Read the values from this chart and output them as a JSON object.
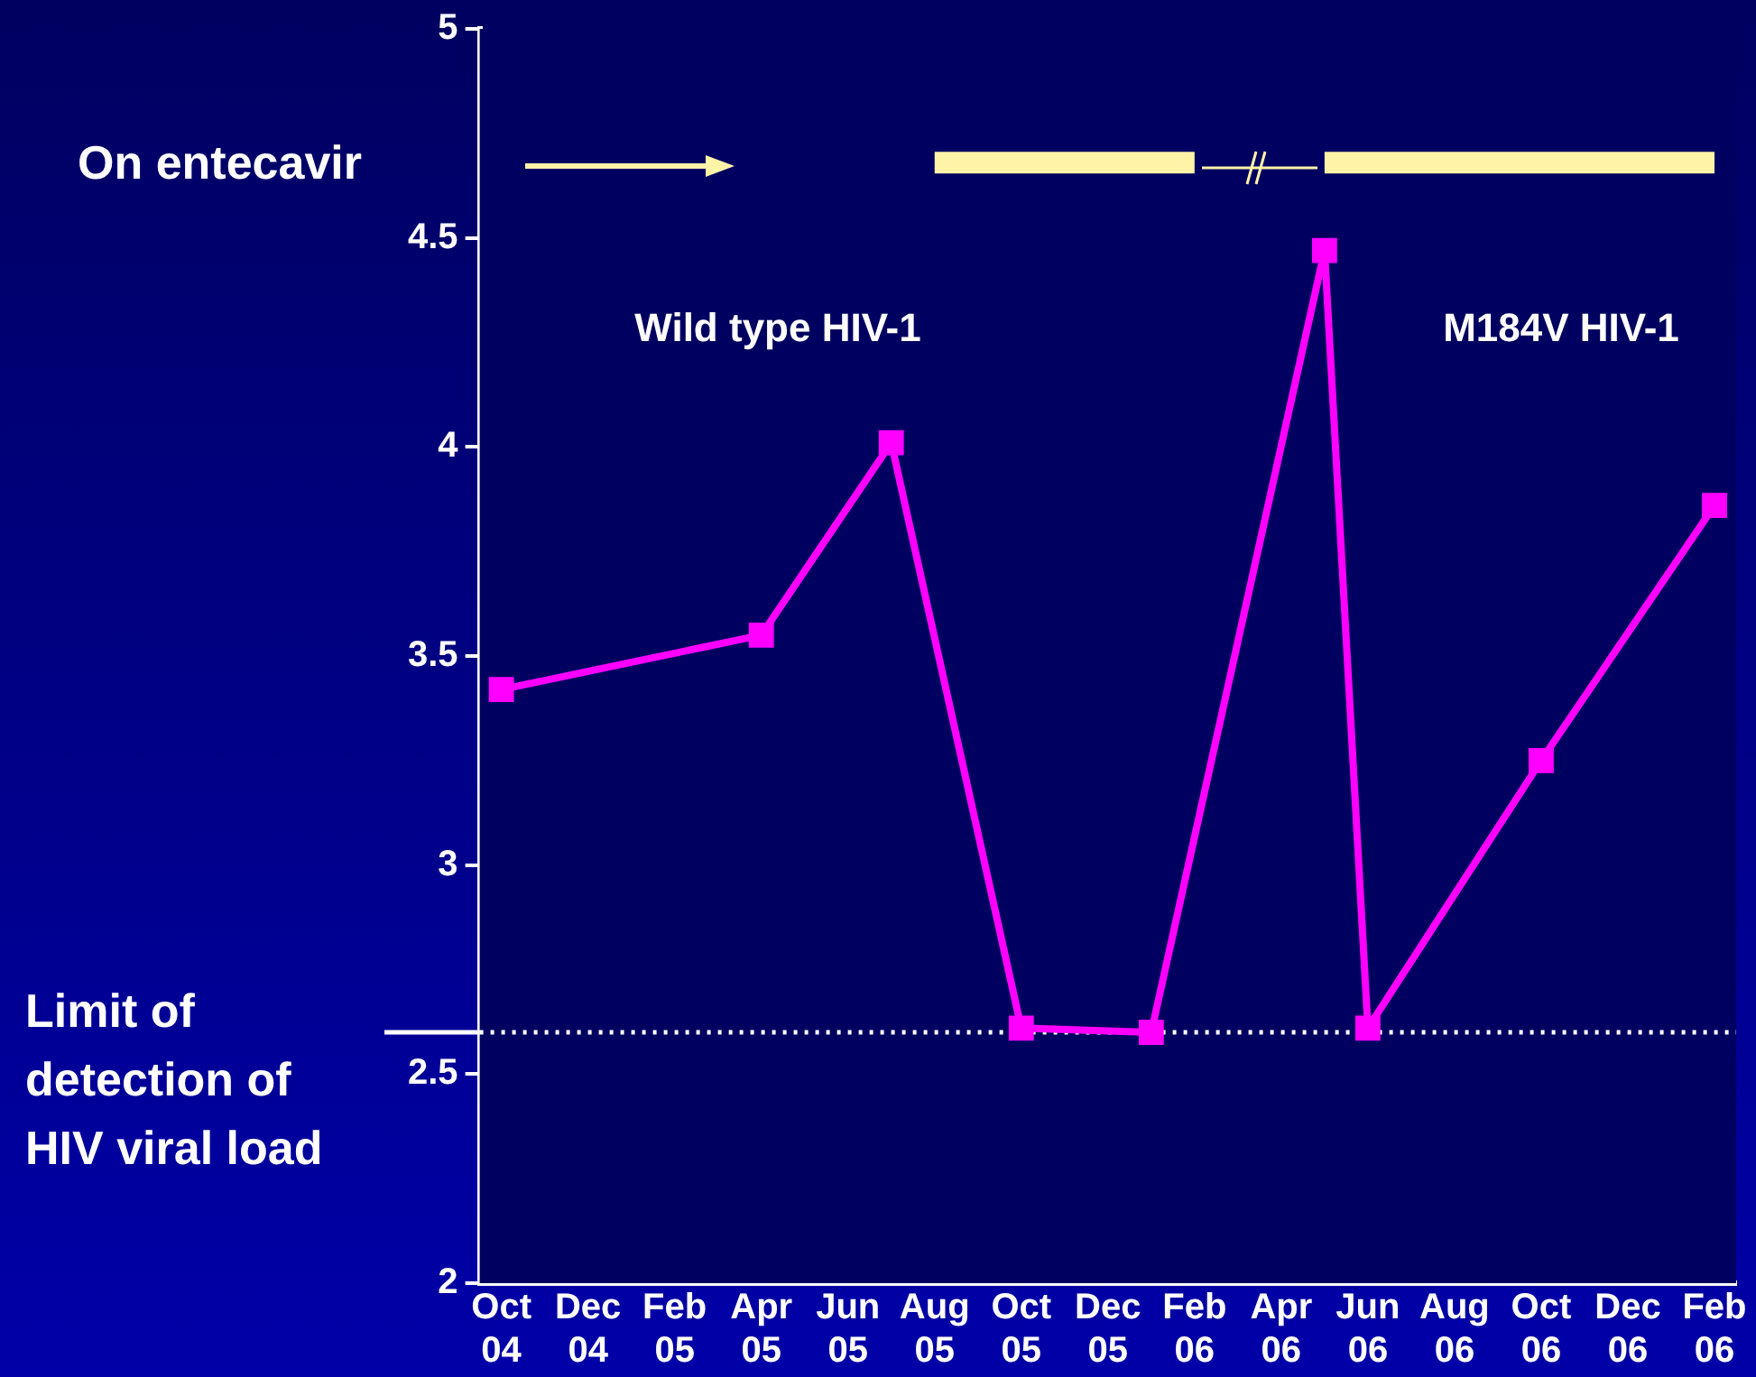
{
  "chart_data": {
    "type": "line",
    "categories": [
      "Oct 04",
      null,
      "Dec 04",
      null,
      "Feb 05",
      null,
      "Apr 05",
      null,
      "Jun 05",
      null,
      "Aug 05",
      null,
      "Oct 05",
      null,
      "Dec 05",
      null,
      "Feb 06",
      null,
      "Apr 06",
      null,
      "Jun 06",
      null,
      "Aug 06",
      null,
      "Oct 06",
      null,
      "Dec 06",
      null,
      "Feb 06"
    ],
    "series": [
      {
        "color": "#ff00ff",
        "values": [
          3.42,
          null,
          null,
          null,
          null,
          null,
          3.55,
          null,
          null,
          4.01,
          null,
          null,
          2.61,
          null,
          null,
          2.6,
          null,
          null,
          null,
          4.47,
          2.61,
          null,
          null,
          null,
          3.25,
          null,
          null,
          null,
          3.86
        ]
      },
      {
        "type": "line",
        "marker": "none",
        "color": "#fff3a8",
        "values": [
          null,
          null,
          null,
          null,
          null,
          null,
          null,
          null,
          null,
          null,
          4.68,
          4.68,
          4.68,
          4.68,
          4.68,
          4.68,
          4.68,
          null,
          null,
          4.68,
          4.68,
          4.68,
          4.68,
          4.68,
          4.68,
          4.68,
          4.68,
          4.68,
          4.68
        ]
      }
    ],
    "ylim": [
      2,
      5
    ],
    "yticks": [
      2,
      2.5,
      3,
      3.5,
      4,
      4.5,
      5
    ],
    "marker": "square",
    "line_style": "solid",
    "ref_lines": [
      {
        "axis": "y",
        "value": 2.6,
        "label": "Limit of detection of HIV viral load",
        "color": "#ffffff",
        "line_style": "dotted"
      }
    ],
    "annotations": [
      "On entecavir",
      "Wild type HIV-1",
      "M184V HIV-1"
    ]
  }
}
